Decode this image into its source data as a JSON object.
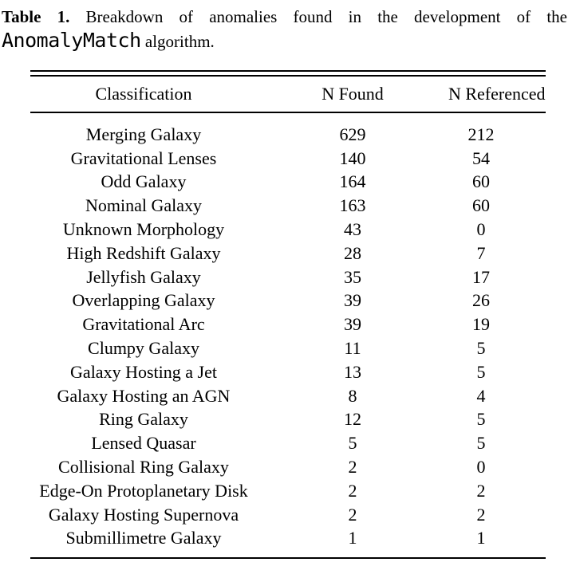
{
  "caption": {
    "label": "Table 1.",
    "line1": "Breakdown of anomalies found in the development of the",
    "code": "AnomalyMatch",
    "line2": "algorithm."
  },
  "table": {
    "columns": [
      "Classification",
      "N Found",
      "N Referenced"
    ],
    "rows": [
      {
        "classification": "Merging Galaxy",
        "n_found": "629",
        "n_referenced": "212"
      },
      {
        "classification": "Gravitational Lenses",
        "n_found": "140",
        "n_referenced": "54"
      },
      {
        "classification": "Odd Galaxy",
        "n_found": "164",
        "n_referenced": "60"
      },
      {
        "classification": "Nominal Galaxy",
        "n_found": "163",
        "n_referenced": "60"
      },
      {
        "classification": "Unknown Morphology",
        "n_found": "43",
        "n_referenced": "0"
      },
      {
        "classification": "High Redshift Galaxy",
        "n_found": "28",
        "n_referenced": "7"
      },
      {
        "classification": "Jellyfish Galaxy",
        "n_found": "35",
        "n_referenced": "17"
      },
      {
        "classification": "Overlapping Galaxy",
        "n_found": "39",
        "n_referenced": "26"
      },
      {
        "classification": "Gravitational Arc",
        "n_found": "39",
        "n_referenced": "19"
      },
      {
        "classification": "Clumpy Galaxy",
        "n_found": "11",
        "n_referenced": "5"
      },
      {
        "classification": "Galaxy Hosting a Jet",
        "n_found": "13",
        "n_referenced": "5"
      },
      {
        "classification": "Galaxy Hosting an AGN",
        "n_found": "8",
        "n_referenced": "4"
      },
      {
        "classification": "Ring Galaxy",
        "n_found": "12",
        "n_referenced": "5"
      },
      {
        "classification": "Lensed Quasar",
        "n_found": "5",
        "n_referenced": "5"
      },
      {
        "classification": "Collisional Ring Galaxy",
        "n_found": "2",
        "n_referenced": "0"
      },
      {
        "classification": "Edge-On Protoplanetary Disk",
        "n_found": "2",
        "n_referenced": "2"
      },
      {
        "classification": "Galaxy Hosting Supernova",
        "n_found": "2",
        "n_referenced": "2"
      },
      {
        "classification": "Submillimetre Galaxy",
        "n_found": "1",
        "n_referenced": "1"
      }
    ]
  },
  "colors": {
    "background": "#ffffff",
    "text": "#000000",
    "rule": "#000000"
  }
}
